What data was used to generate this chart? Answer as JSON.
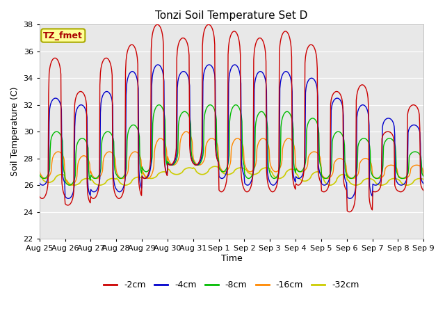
{
  "title": "Tonzi Soil Temperature Set D",
  "xlabel": "Time",
  "ylabel": "Soil Temperature (C)",
  "ylim": [
    22,
    38
  ],
  "yticks": [
    22,
    24,
    26,
    28,
    30,
    32,
    34,
    36,
    38
  ],
  "annotation_text": "TZ_fmet",
  "annotation_color": "#aa0000",
  "annotation_bg": "#ffff99",
  "annotation_border": "#aaaa00",
  "bg_color": "#e8e8e8",
  "plot_bg": "#e8e8e8",
  "series_colors": [
    "#cc0000",
    "#0000cc",
    "#00bb00",
    "#ff8800",
    "#cccc00"
  ],
  "series_labels": [
    "-2cm",
    "-4cm",
    "-8cm",
    "-16cm",
    "-32cm"
  ],
  "x_tick_labels": [
    "Aug 25",
    "Aug 26",
    "Aug 27",
    "Aug 28",
    "Aug 29",
    "Aug 30",
    "Aug 31",
    "Sep 1",
    "Sep 2",
    "Sep 3",
    "Sep 4",
    "Sep 5",
    "Sep 6",
    "Sep 7",
    "Sep 8",
    "Sep 9"
  ],
  "n_days": 15,
  "pts_per_day": 48,
  "base_temp": 27.0,
  "peak_hour": 14.5,
  "trough_hour": 6.0,
  "red_peaks": [
    35.5,
    33.0,
    35.5,
    36.5,
    38.0,
    37.0,
    38.0,
    37.5,
    37.0,
    37.5,
    36.5,
    33.0,
    33.5,
    30.0,
    32.0
  ],
  "red_troughs": [
    25.0,
    24.5,
    25.0,
    25.0,
    26.5,
    27.5,
    27.5,
    25.5,
    25.5,
    25.5,
    26.0,
    25.5,
    24.0,
    25.5,
    25.5
  ],
  "blue_peaks": [
    32.5,
    32.0,
    33.0,
    34.5,
    35.0,
    34.5,
    35.0,
    35.0,
    34.5,
    34.5,
    34.0,
    32.5,
    32.0,
    31.0,
    30.5
  ],
  "blue_troughs": [
    26.0,
    25.0,
    25.5,
    25.5,
    26.5,
    27.5,
    27.5,
    26.5,
    26.0,
    26.0,
    26.5,
    26.0,
    25.0,
    26.0,
    26.0
  ],
  "green_peaks": [
    30.0,
    29.5,
    30.0,
    30.5,
    32.0,
    31.5,
    32.0,
    32.0,
    31.5,
    31.5,
    31.0,
    30.0,
    29.5,
    29.5,
    28.5
  ],
  "green_troughs": [
    26.5,
    26.0,
    26.5,
    26.5,
    27.0,
    27.5,
    27.5,
    27.0,
    26.5,
    26.5,
    27.0,
    26.5,
    26.5,
    26.5,
    26.5
  ],
  "orange_peaks": [
    28.5,
    28.2,
    28.5,
    28.5,
    29.5,
    30.0,
    29.5,
    29.5,
    29.5,
    29.5,
    28.5,
    28.0,
    28.0,
    27.5,
    27.5
  ],
  "orange_troughs": [
    26.5,
    26.0,
    26.5,
    26.5,
    26.5,
    27.5,
    27.5,
    27.0,
    27.0,
    27.0,
    27.0,
    26.5,
    26.5,
    26.5,
    26.5
  ],
  "yellow_peaks": [
    26.8,
    26.5,
    26.5,
    26.6,
    27.0,
    27.3,
    27.4,
    27.3,
    27.3,
    27.2,
    27.0,
    26.8,
    26.5,
    26.5,
    26.5
  ],
  "yellow_troughs": [
    26.2,
    26.0,
    26.0,
    26.0,
    26.5,
    26.8,
    26.8,
    26.8,
    26.8,
    26.5,
    26.3,
    26.0,
    26.0,
    26.0,
    26.0
  ],
  "phase_offsets_hrs": [
    0.0,
    0.5,
    1.5,
    3.0,
    6.0
  ],
  "sharpness": [
    8.0,
    7.0,
    4.0,
    2.5,
    1.5
  ]
}
